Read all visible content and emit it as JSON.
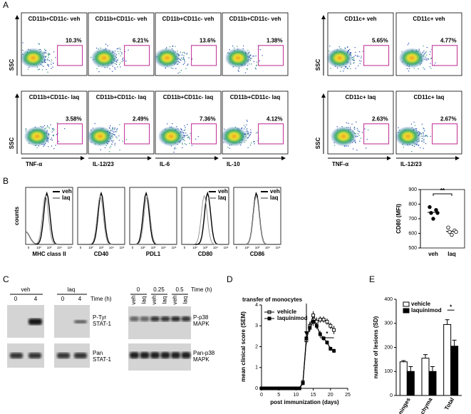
{
  "panel_labels": [
    "A",
    "B",
    "C",
    "D",
    "E"
  ],
  "flow": {
    "y_label": "SSC",
    "left": {
      "rows": [
        {
          "titles": [
            "CD11b+CD11c- veh",
            "CD11b+CD11c- veh",
            "CD11b+CD11c- veh",
            "CD11b+CD11c- veh"
          ],
          "percents": [
            "10.3%",
            "6.21%",
            "13.6%",
            "1.38%"
          ]
        },
        {
          "titles": [
            "CD11b+CD11c- laq",
            "CD11b+CD11c- laq",
            "CD11b+CD11c- laq",
            "CD11b+CD11c- laq"
          ],
          "percents": [
            "3.58%",
            "2.49%",
            "7.36%",
            "4.12%"
          ]
        }
      ],
      "x_labels": [
        "TNF-α",
        "IL-12/23",
        "IL-6",
        "IL-10"
      ]
    },
    "right": {
      "rows": [
        {
          "titles": [
            "CD11c+ veh",
            "CD11c+ veh"
          ],
          "percents": [
            "5.65%",
            "4.77%"
          ]
        },
        {
          "titles": [
            "CD11c+ laq",
            "CD11c+ laq"
          ],
          "percents": [
            "2.63%",
            "2.67%"
          ]
        }
      ],
      "x_labels": [
        "TNF-α",
        "IL-12/23"
      ]
    }
  },
  "histograms": {
    "y_label": "counts",
    "legend": [
      "veh",
      "laq"
    ],
    "markers": [
      "MHC class II",
      "CD40",
      "PDL1",
      "CD80",
      "CD86"
    ],
    "ticks": [
      "0",
      "10²",
      "10³",
      "10⁴",
      "10⁵"
    ]
  },
  "blots": {
    "left": {
      "groups": [
        "veh",
        "laq"
      ],
      "times": [
        "0",
        "4",
        "0",
        "4"
      ],
      "time_label": "Time (h)",
      "rows": [
        [
          "P-Tyr",
          "STAT-1"
        ],
        [
          "Pan",
          "STAT-1"
        ]
      ]
    },
    "right": {
      "times": [
        "0",
        "0.25",
        "0.5"
      ],
      "time_label": "Time (h)",
      "lanes": [
        "veh",
        "laq",
        "veh",
        "laq",
        "veh",
        "laq"
      ],
      "rows": [
        [
          "P-p38",
          "MAPK"
        ],
        [
          "Pan-p38",
          "MAPK"
        ]
      ]
    }
  },
  "chart_data": [
    {
      "type": "dot",
      "ylabel": "CD80 (MFI)",
      "categories": [
        "veh",
        "laq"
      ],
      "values": [
        [
          780,
          760,
          740,
          740,
          700
        ],
        [
          640,
          620,
          610,
          610,
          590
        ]
      ],
      "fills": [
        "#000000",
        "#ffffff"
      ],
      "ylim": [
        500,
        900
      ],
      "yticks": [
        500,
        600,
        700,
        800,
        900
      ],
      "annotation": "**"
    },
    {
      "type": "line",
      "annotation": "transfer of monocytes",
      "star": "*",
      "xlabel": "post immunization (days)",
      "ylabel": "mean clinical score (SEM)",
      "x": [
        0,
        1,
        2,
        3,
        4,
        5,
        6,
        7,
        8,
        9,
        10,
        11,
        12,
        13,
        14,
        15,
        16,
        17,
        18,
        19,
        20,
        21
      ],
      "series": [
        {
          "name": "vehicle",
          "marker": "open",
          "values": [
            0,
            0,
            0,
            0,
            0,
            0,
            0,
            0,
            0,
            0,
            0,
            0,
            0.3,
            2.3,
            3.0,
            3.5,
            3.2,
            3.3,
            3.3,
            3.2,
            3.0,
            2.8
          ],
          "errors": [
            0,
            0,
            0,
            0,
            0,
            0,
            0,
            0,
            0,
            0,
            0,
            0,
            0.1,
            0.2,
            0.2,
            0.2,
            0.2,
            0.15,
            0.15,
            0.15,
            0.15,
            0.2
          ]
        },
        {
          "name": "laquinimod",
          "marker": "filled",
          "values": [
            0,
            0,
            0,
            0,
            0,
            0,
            0,
            0,
            0,
            0,
            0,
            0,
            0.25,
            2.4,
            2.9,
            3.2,
            3.0,
            2.6,
            2.4,
            2.2,
            1.9,
            1.8
          ],
          "errors": [
            0,
            0,
            0,
            0,
            0,
            0,
            0,
            0,
            0,
            0,
            0,
            0,
            0.1,
            0.2,
            0.2,
            0.2,
            0.15,
            0.15,
            0.1,
            0.1,
            0.1,
            0.1
          ]
        }
      ],
      "xlim": [
        0,
        25
      ],
      "xticks": [
        0,
        5,
        10,
        15,
        20,
        25
      ],
      "ylim": [
        0,
        4
      ],
      "yticks": [
        0,
        1,
        2,
        3,
        4
      ]
    },
    {
      "type": "bar",
      "ylabel": "number of lesions (SD)",
      "categories": [
        "Meninges",
        "Parenchyma",
        "Total"
      ],
      "series": [
        {
          "name": "vehicle",
          "color": "#ffffff",
          "values": [
            140,
            155,
            295
          ],
          "errors": [
            5,
            15,
            20
          ]
        },
        {
          "name": "laquinimod",
          "color": "#000000",
          "values": [
            100,
            100,
            205
          ],
          "errors": [
            20,
            20,
            25
          ]
        }
      ],
      "ylim": [
        0,
        400
      ],
      "yticks": [
        0,
        100,
        200,
        300,
        400
      ],
      "annotation": "*"
    }
  ]
}
